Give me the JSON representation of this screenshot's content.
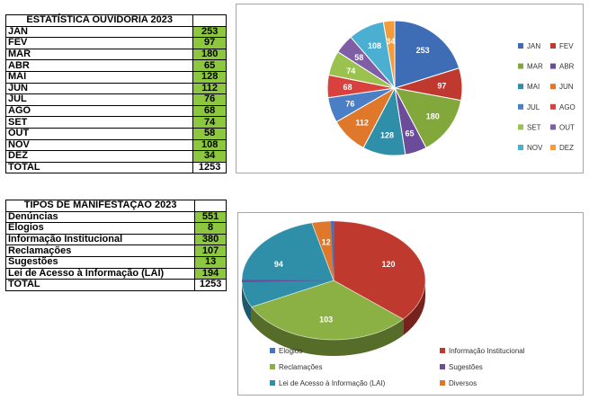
{
  "monthly_table": {
    "title": "ESTATÍSTICA OUVIDORIA 2023",
    "rows": [
      {
        "label": "JAN",
        "value": "253"
      },
      {
        "label": "FEV",
        "value": "97"
      },
      {
        "label": "MAR",
        "value": "180"
      },
      {
        "label": "ABR",
        "value": "65"
      },
      {
        "label": "MAI",
        "value": "128"
      },
      {
        "label": "JUN",
        "value": "112"
      },
      {
        "label": "JUL",
        "value": "76"
      },
      {
        "label": "AGO",
        "value": "68"
      },
      {
        "label": "SET",
        "value": "74"
      },
      {
        "label": "OUT",
        "value": "58"
      },
      {
        "label": "NOV",
        "value": "108"
      },
      {
        "label": "DEZ",
        "value": "34"
      }
    ],
    "total_label": "TOTAL",
    "total_value": "1253"
  },
  "types_table": {
    "title": "TIPOS DE MANIFESTAÇAO 2023",
    "rows": [
      {
        "label": "Denúncias",
        "value": "551"
      },
      {
        "label": "Elogios",
        "value": "8"
      },
      {
        "label": "Informação Institucional",
        "value": "380"
      },
      {
        "label": "Reclamações",
        "value": "107"
      },
      {
        "label": "Sugestões",
        "value": "13"
      },
      {
        "label": "Lei de Acesso à Informação (LAI)",
        "value": "194"
      }
    ],
    "total_label": "TOTAL",
    "total_value": "1253"
  },
  "chart_data": [
    {
      "type": "pie",
      "title": "",
      "categories": [
        "JAN",
        "FEV",
        "MAR",
        "ABR",
        "MAI",
        "JUN",
        "JUL",
        "AGO",
        "SET",
        "OUT",
        "NOV",
        "DEZ"
      ],
      "values": [
        253,
        97,
        180,
        65,
        128,
        112,
        76,
        68,
        74,
        58,
        108,
        34
      ],
      "colors": [
        "#3e6db5",
        "#c0392f",
        "#82a83c",
        "#6b4c9a",
        "#2f8fa8",
        "#e0782c",
        "#4a7fc6",
        "#d9413f",
        "#9bc24f",
        "#7f5ea6",
        "#4bafd1",
        "#f49c3a"
      ],
      "legend_position": "right"
    },
    {
      "type": "pie",
      "title": "",
      "categories": [
        "Elogios",
        "Informação Institucional",
        "Reclamações",
        "Sugestões",
        "Lei de Acesso à Informação (LAI)",
        "Diversos"
      ],
      "values": [
        0,
        120,
        103,
        0,
        94,
        12
      ],
      "slice_labels": [
        "",
        "120",
        "103",
        "",
        "94",
        "12"
      ],
      "colors": [
        "#4472c4",
        "#c0392f",
        "#8bb043",
        "#6b4c9a",
        "#2f8fa8",
        "#e0782c"
      ],
      "legend_position": "bottom"
    }
  ]
}
